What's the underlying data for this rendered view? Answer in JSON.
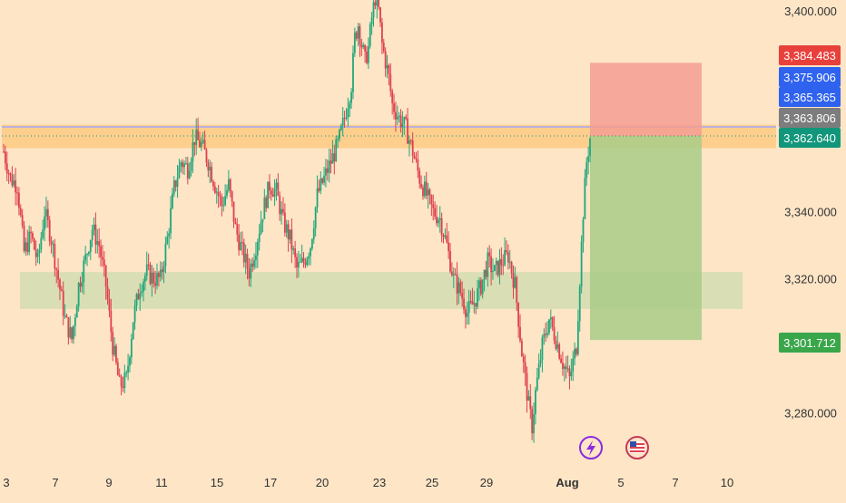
{
  "chart_data": {
    "type": "candlestick",
    "y_ticks": [
      "3,400.000",
      "3,340.000",
      "3,320.000",
      "3,280.000"
    ],
    "y_tick_values": [
      3400,
      3340,
      3320,
      3280
    ],
    "ylim": [
      3266,
      3404
    ],
    "x_ticks": [
      "3",
      "7",
      "9",
      "11",
      "15",
      "17",
      "20",
      "23",
      "25",
      "29",
      "Aug",
      "5",
      "7",
      "10"
    ],
    "zones": [
      {
        "name": "resistance",
        "y_top": 3366,
        "y_bottom": 3359,
        "color": "#fecb86"
      },
      {
        "name": "support",
        "y_top": 3322,
        "y_bottom": 3311,
        "color": "#d3ddb0"
      }
    ],
    "position": {
      "entry": 3362.64,
      "stop": 3384.483,
      "target": 3301.712,
      "risk_color": "#f59e93",
      "reward_color": "#a8cd87"
    },
    "price_badges": [
      {
        "label": "3,384.483",
        "value": 3384.483,
        "color": "#e8403b"
      },
      {
        "label": "3,375.906",
        "value": 3375.906,
        "color": "#2f62ee"
      },
      {
        "label": "3,365.365",
        "value": 3365.365,
        "color": "#2f62ee"
      },
      {
        "label": "3,363.806",
        "value": 3363.806,
        "color": "#7d7d7d"
      },
      {
        "label": "3,362.640",
        "value": 3362.64,
        "color": "#12967b"
      },
      {
        "label": "3,301.712",
        "value": 3301.712,
        "color": "#3aa64a"
      }
    ],
    "colors": {
      "up": "#22a67a",
      "down": "#e0404e",
      "background": "#fde5c6"
    },
    "anchors": [
      [
        0,
        3358
      ],
      [
        4,
        3350
      ],
      [
        8,
        3348
      ],
      [
        12,
        3328
      ],
      [
        16,
        3333
      ],
      [
        20,
        3325
      ],
      [
        24,
        3340
      ],
      [
        28,
        3332
      ],
      [
        32,
        3320
      ],
      [
        36,
        3308
      ],
      [
        40,
        3302
      ],
      [
        44,
        3318
      ],
      [
        48,
        3326
      ],
      [
        52,
        3335
      ],
      [
        56,
        3330
      ],
      [
        60,
        3318
      ],
      [
        64,
        3300
      ],
      [
        68,
        3288
      ],
      [
        72,
        3290
      ],
      [
        76,
        3308
      ],
      [
        80,
        3318
      ],
      [
        84,
        3322
      ],
      [
        88,
        3320
      ],
      [
        92,
        3320
      ],
      [
        96,
        3332
      ],
      [
        100,
        3347
      ],
      [
        104,
        3355
      ],
      [
        108,
        3353
      ],
      [
        112,
        3362
      ],
      [
        116,
        3360
      ],
      [
        120,
        3355
      ],
      [
        124,
        3348
      ],
      [
        128,
        3342
      ],
      [
        132,
        3348
      ],
      [
        136,
        3335
      ],
      [
        140,
        3328
      ],
      [
        144,
        3322
      ],
      [
        148,
        3330
      ],
      [
        152,
        3340
      ],
      [
        156,
        3348
      ],
      [
        160,
        3346
      ],
      [
        164,
        3337
      ],
      [
        168,
        3332
      ],
      [
        172,
        3323
      ],
      [
        176,
        3325
      ],
      [
        180,
        3330
      ],
      [
        184,
        3345
      ],
      [
        188,
        3350
      ],
      [
        192,
        3355
      ],
      [
        196,
        3360
      ],
      [
        200,
        3368
      ],
      [
        204,
        3378
      ],
      [
        206,
        3392
      ],
      [
        208,
        3396
      ],
      [
        210,
        3390
      ],
      [
        212,
        3385
      ],
      [
        214,
        3389
      ],
      [
        216,
        3398
      ],
      [
        218,
        3404
      ],
      [
        220,
        3400
      ],
      [
        222,
        3390
      ],
      [
        224,
        3385
      ],
      [
        226,
        3380
      ],
      [
        228,
        3372
      ],
      [
        232,
        3368
      ],
      [
        236,
        3365
      ],
      [
        240,
        3358
      ],
      [
        244,
        3350
      ],
      [
        248,
        3345
      ],
      [
        252,
        3340
      ],
      [
        256,
        3338
      ],
      [
        260,
        3330
      ],
      [
        264,
        3320
      ],
      [
        268,
        3316
      ],
      [
        272,
        3310
      ],
      [
        276,
        3313
      ],
      [
        280,
        3318
      ],
      [
        284,
        3325
      ],
      [
        288,
        3322
      ],
      [
        292,
        3325
      ],
      [
        296,
        3327
      ],
      [
        300,
        3318
      ],
      [
        304,
        3298
      ],
      [
        308,
        3282
      ],
      [
        310,
        3276
      ],
      [
        312,
        3286
      ],
      [
        316,
        3300
      ],
      [
        320,
        3308
      ],
      [
        324,
        3302
      ],
      [
        328,
        3295
      ],
      [
        332,
        3290
      ],
      [
        336,
        3300
      ],
      [
        340,
        3340
      ],
      [
        342,
        3355
      ],
      [
        344,
        3362
      ]
    ],
    "n_candles": 345
  }
}
